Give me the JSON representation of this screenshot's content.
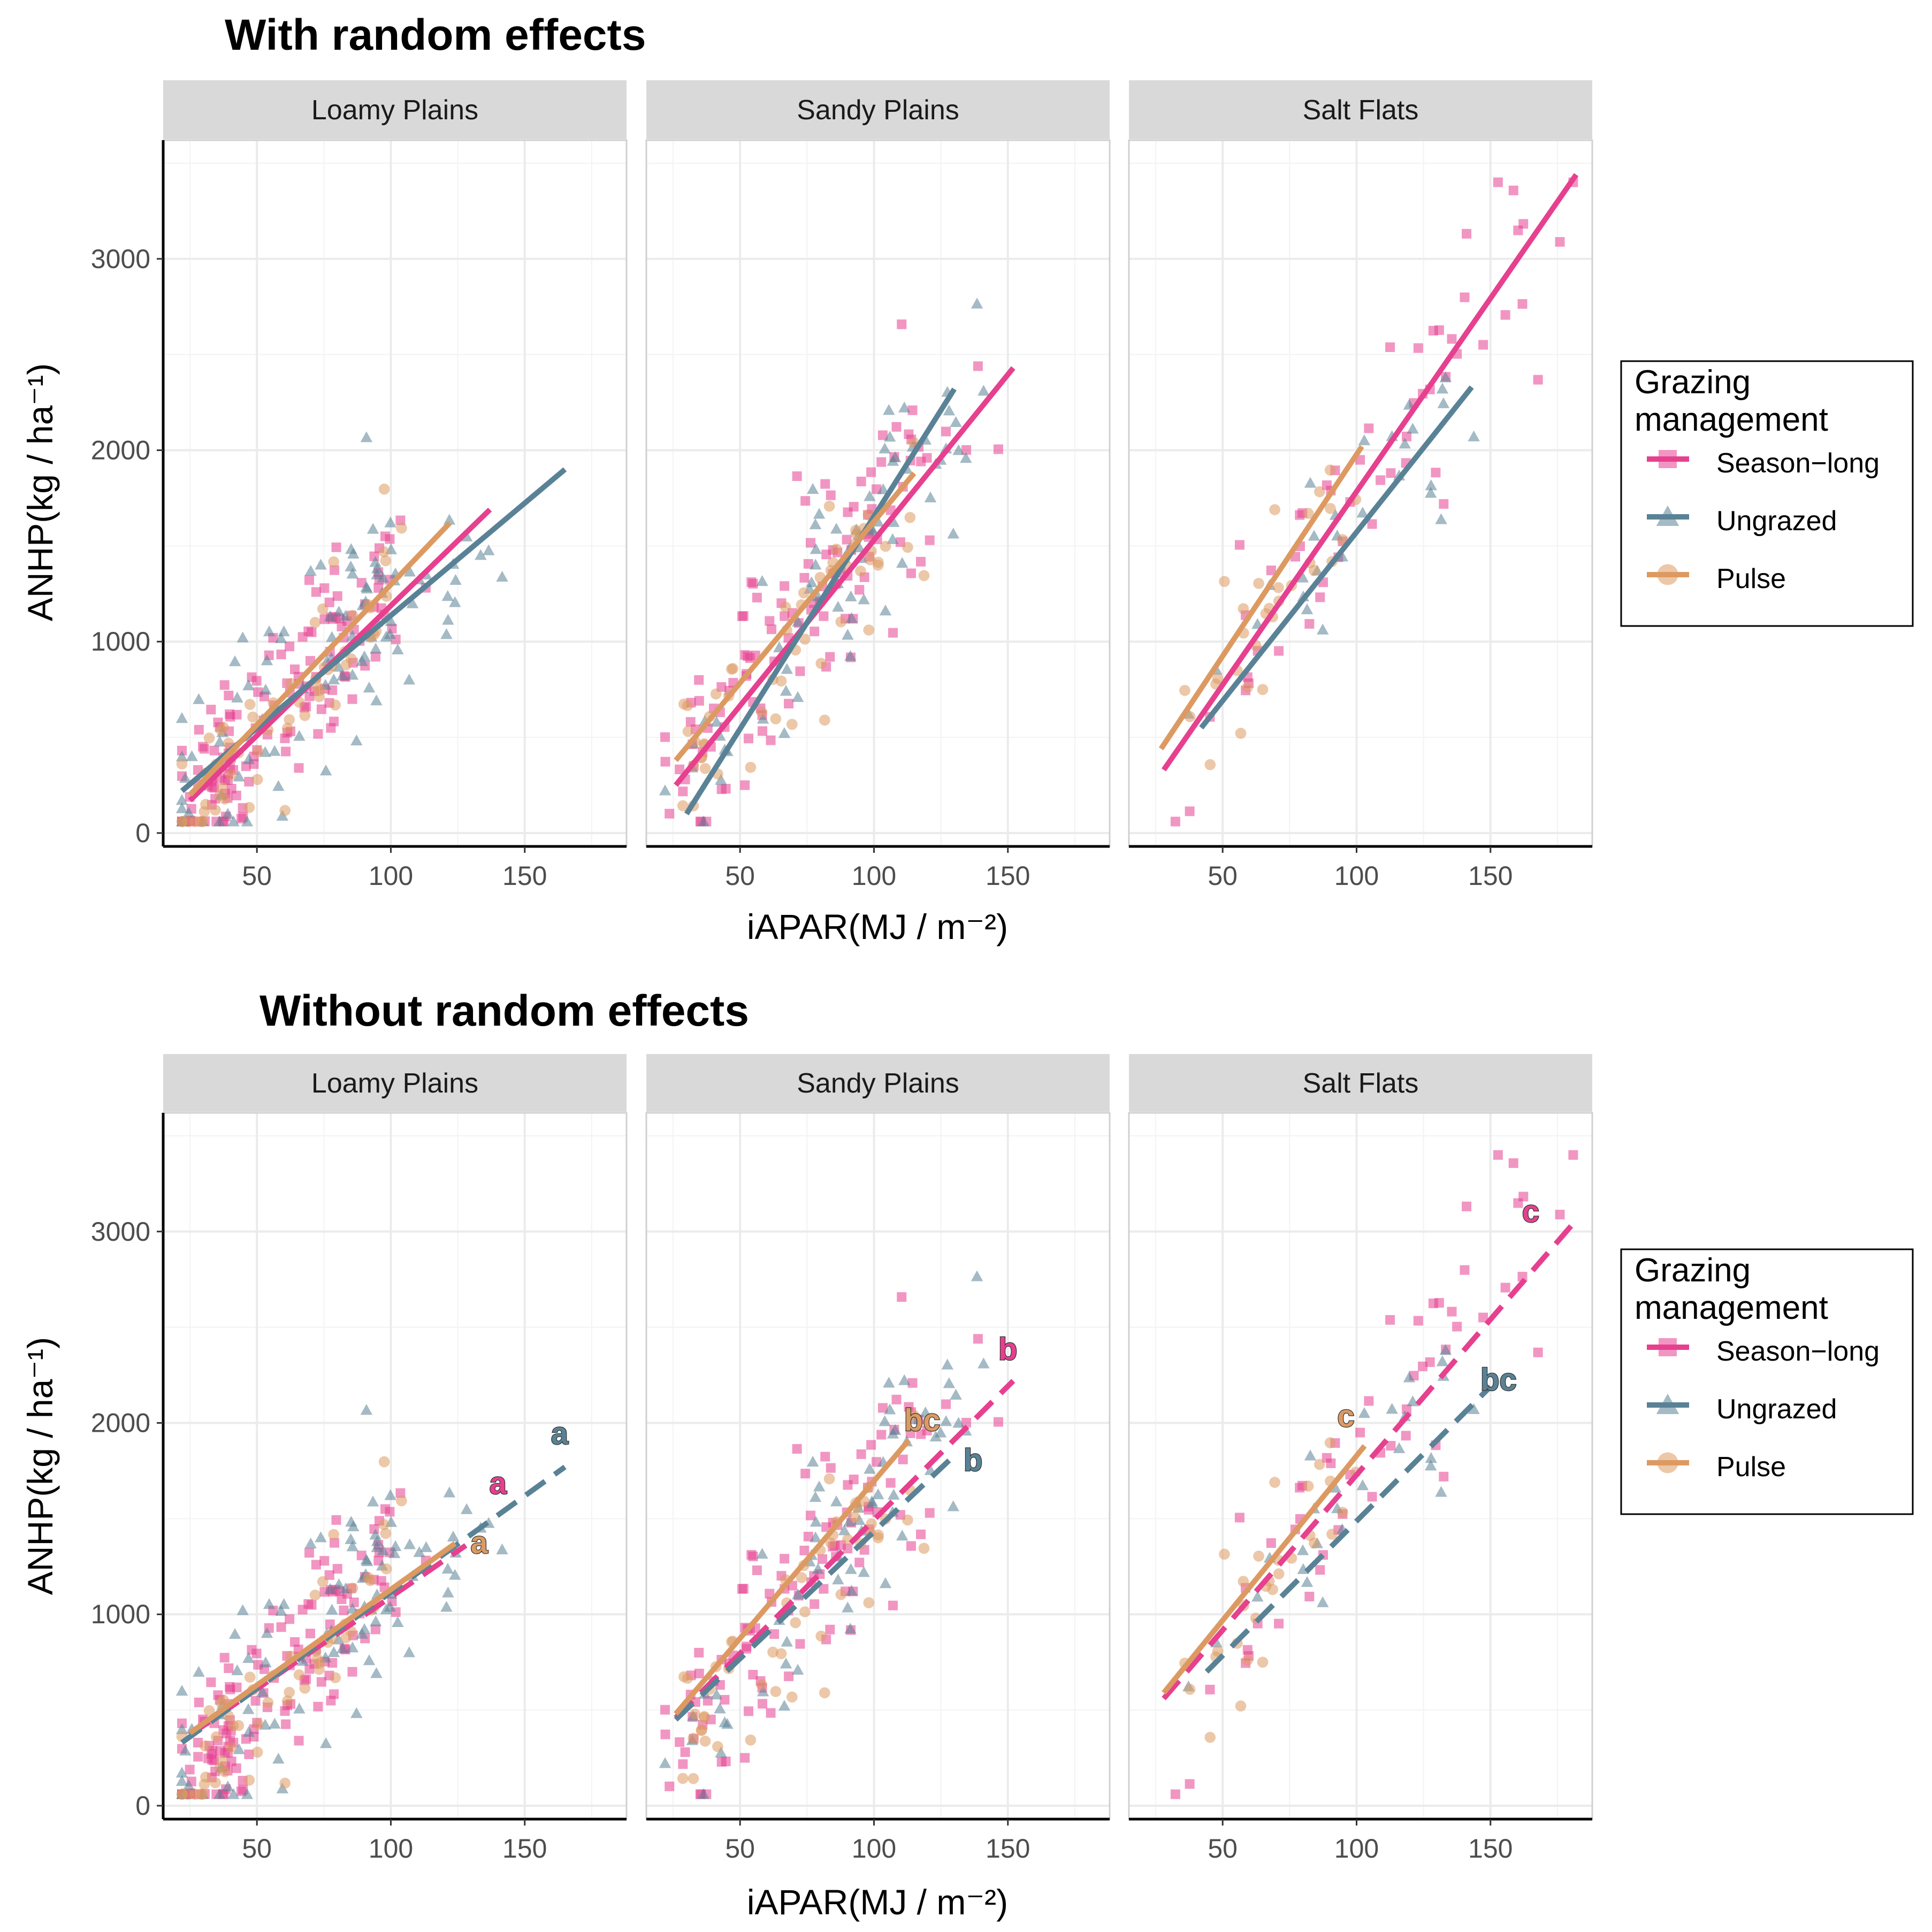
{
  "colors": {
    "Season-long": "#e6408f",
    "Ungrazed": "#5a8296",
    "Pulse": "#dc9a62"
  },
  "legend": {
    "title_line1": "Grazing",
    "title_line2": "management",
    "items": [
      {
        "label": "Season−long",
        "key": "Season-long",
        "shape": "square"
      },
      {
        "label": "Ungrazed",
        "key": "Ungrazed",
        "shape": "triangle"
      },
      {
        "label": "Pulse",
        "key": "Pulse",
        "shape": "circle"
      }
    ]
  },
  "axes": {
    "ylabel": "ANHP(kg / ha⁻¹)",
    "xlabel": "iAPAR(MJ / m⁻²)",
    "xticks": [
      50,
      100,
      150
    ],
    "yticks": [
      0,
      1000,
      2000,
      3000
    ]
  },
  "chart_data": [
    {
      "type": "scatter",
      "title": "With random effects",
      "xlim": [
        15,
        188
      ],
      "ylim": [
        -70,
        3620
      ],
      "grid": true,
      "legend_position": "right",
      "facets": [
        {
          "name": "Loamy Plains",
          "lines": [
            {
              "series": "Season-long",
              "x": [
                25,
                137
              ],
              "y": [
                170,
                1690
              ],
              "dashed": false
            },
            {
              "series": "Ungrazed",
              "x": [
                22,
                165
              ],
              "y": [
                220,
                1900
              ],
              "dashed": false
            },
            {
              "series": "Pulse",
              "x": [
                25,
                122
              ],
              "y": [
                200,
                1620
              ],
              "dashed": false
            }
          ],
          "letters": []
        },
        {
          "name": "Sandy Plains",
          "lines": [
            {
              "series": "Season-long",
              "x": [
                26,
                152
              ],
              "y": [
                250,
                2430
              ],
              "dashed": false
            },
            {
              "series": "Ungrazed",
              "x": [
                30,
                130
              ],
              "y": [
                100,
                2320
              ],
              "dashed": false
            },
            {
              "series": "Pulse",
              "x": [
                26,
                115
              ],
              "y": [
                380,
                1880
              ],
              "dashed": false
            }
          ],
          "letters": []
        },
        {
          "name": "Salt Flats",
          "lines": [
            {
              "series": "Season-long",
              "x": [
                28,
                182
              ],
              "y": [
                330,
                3440
              ],
              "dashed": false
            },
            {
              "series": "Ungrazed",
              "x": [
                42,
                143
              ],
              "y": [
                550,
                2330
              ],
              "dashed": false
            },
            {
              "series": "Pulse",
              "x": [
                27,
                102
              ],
              "y": [
                440,
                2020
              ],
              "dashed": false
            }
          ],
          "letters": []
        }
      ]
    },
    {
      "type": "scatter",
      "title": "Without random effects",
      "xlim": [
        15,
        188
      ],
      "ylim": [
        -70,
        3620
      ],
      "grid": true,
      "legend_position": "right",
      "facets": [
        {
          "name": "Loamy Plains",
          "lines": [
            {
              "series": "Season-long",
              "x": [
                25,
                128
              ],
              "y": [
                370,
                1360
              ],
              "dashed": true
            },
            {
              "series": "Ungrazed",
              "x": [
                22,
                165
              ],
              "y": [
                330,
                1770
              ],
              "dashed": true
            },
            {
              "series": "Pulse",
              "x": [
                25,
                124
              ],
              "y": [
                380,
                1370
              ],
              "dashed": false
            }
          ],
          "letters": [
            {
              "text": "a",
              "series": "Season-long",
              "x": 140,
              "y": 1630
            },
            {
              "text": "a",
              "series": "Ungrazed",
              "x": 163,
              "y": 1890
            },
            {
              "text": "a",
              "series": "Pulse",
              "x": 133,
              "y": 1320
            }
          ]
        },
        {
          "name": "Sandy Plains",
          "lines": [
            {
              "series": "Season-long",
              "x": [
                26,
                152
              ],
              "y": [
                460,
                2220
              ],
              "dashed": true
            },
            {
              "series": "Ungrazed",
              "x": [
                26,
                130
              ],
              "y": [
                450,
                1830
              ],
              "dashed": true
            },
            {
              "series": "Pulse",
              "x": [
                26,
                113
              ],
              "y": [
                480,
                1910
              ],
              "dashed": false
            }
          ],
          "letters": [
            {
              "text": "b",
              "series": "Season-long",
              "x": 150,
              "y": 2330
            },
            {
              "text": "b",
              "series": "Ungrazed",
              "x": 137,
              "y": 1750
            },
            {
              "text": "bc",
              "series": "Pulse",
              "x": 118,
              "y": 1960
            }
          ]
        },
        {
          "name": "Salt Flats",
          "lines": [
            {
              "series": "Season-long",
              "x": [
                28,
                182
              ],
              "y": [
                560,
                3060
              ],
              "dashed": true
            },
            {
              "series": "Ungrazed",
              "x": [
                44,
                150
              ],
              "y": [
                700,
                2190
              ],
              "dashed": true
            },
            {
              "series": "Pulse",
              "x": [
                28,
                103
              ],
              "y": [
                590,
                1880
              ],
              "dashed": false
            }
          ],
          "letters": [
            {
              "text": "c",
              "series": "Season-long",
              "x": 165,
              "y": 3050
            },
            {
              "text": "bc",
              "series": "Ungrazed",
              "x": 153,
              "y": 2170
            },
            {
              "text": "c",
              "series": "Pulse",
              "x": 96,
              "y": 1980
            }
          ]
        }
      ]
    }
  ]
}
